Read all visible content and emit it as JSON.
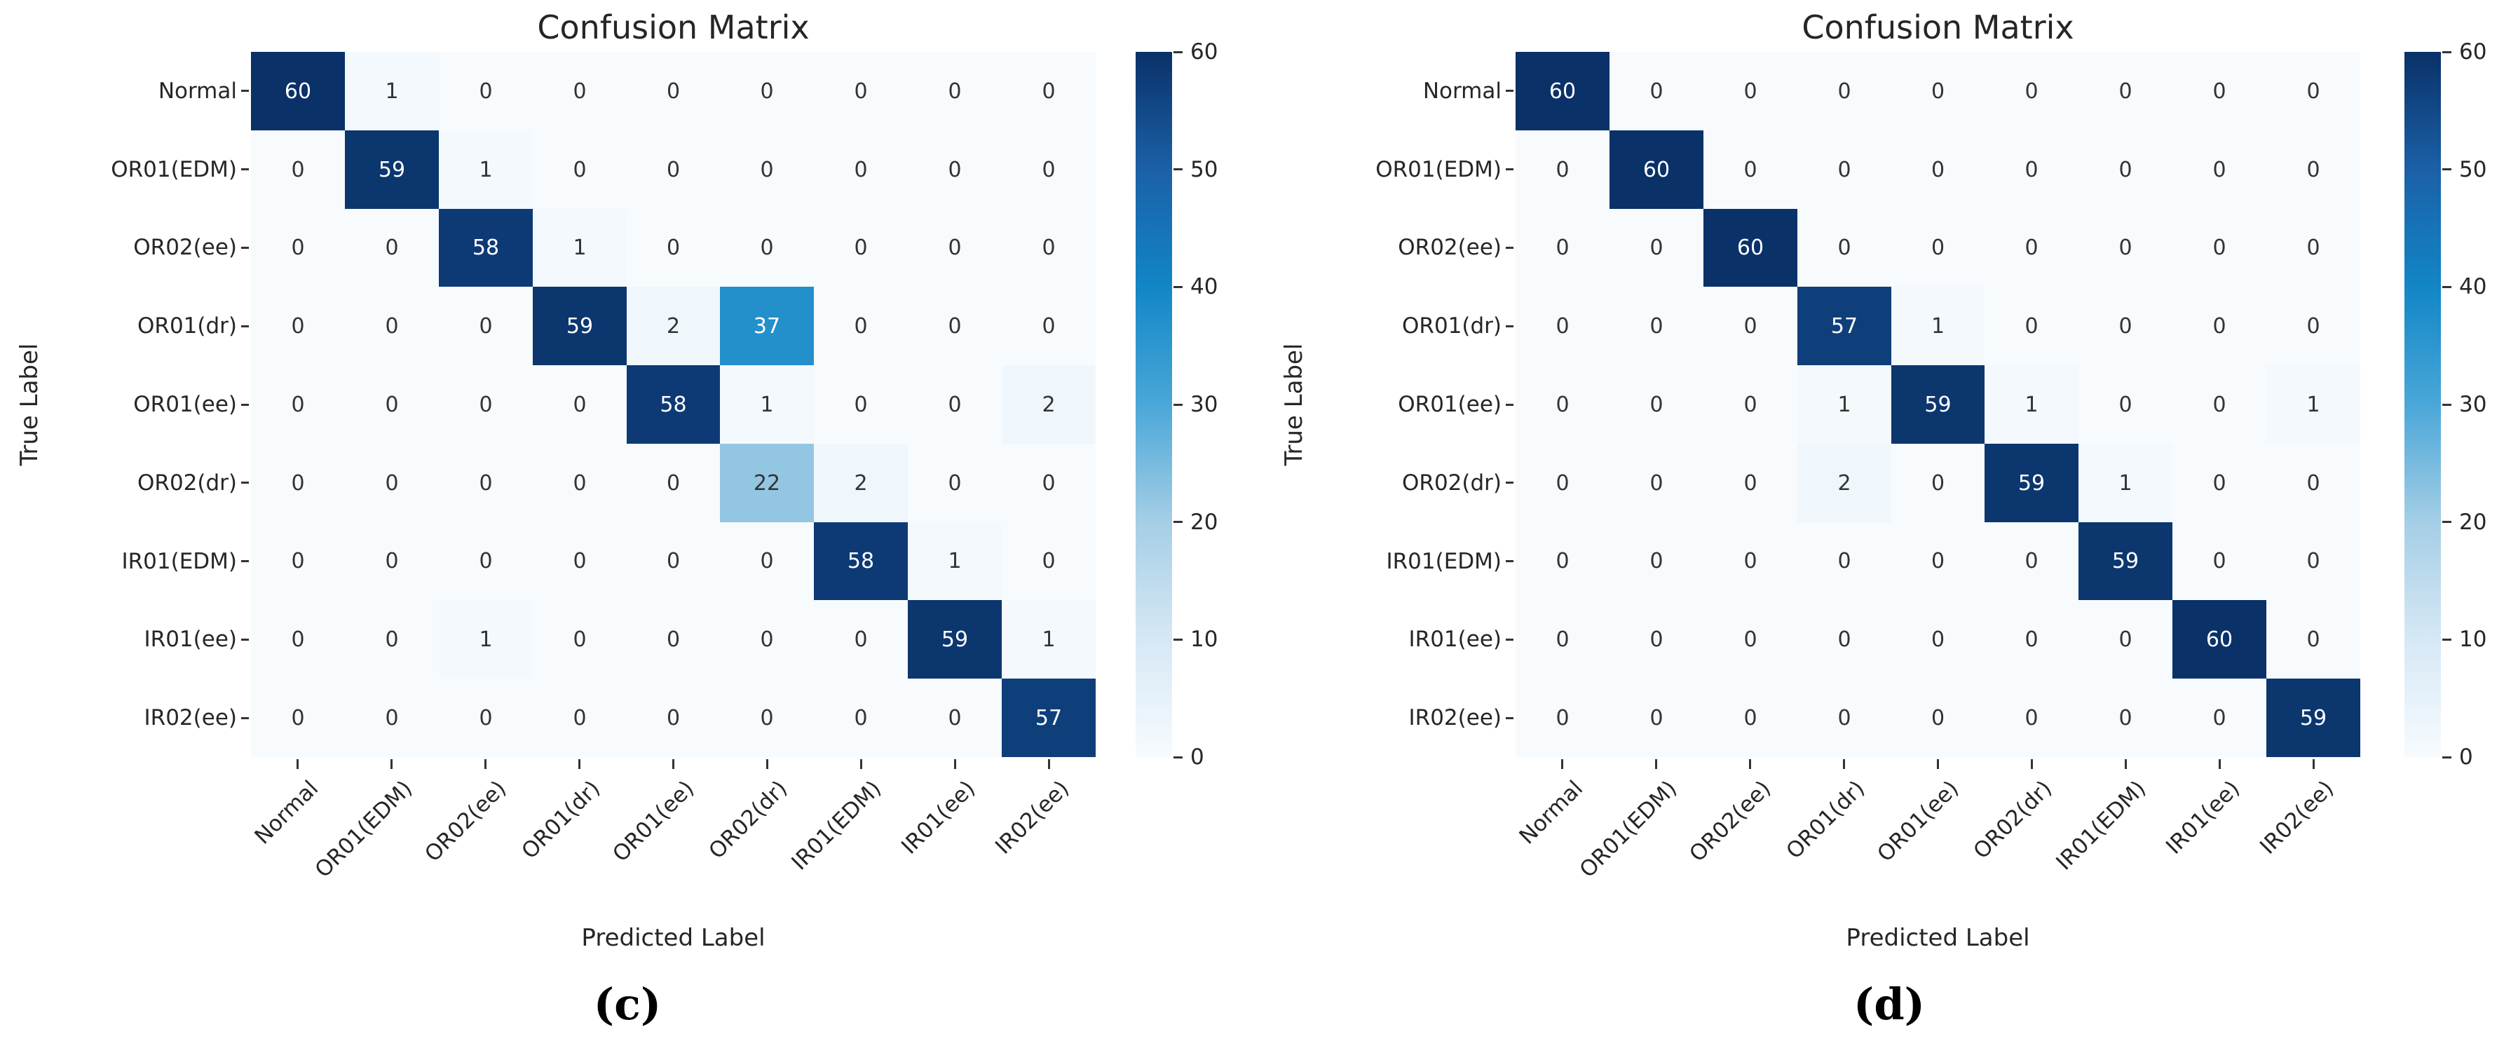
{
  "figure": {
    "background": "#ffffff"
  },
  "chart_data": [
    {
      "type": "heatmap",
      "panel_caption": "(c)",
      "title": "Confusion Matrix",
      "xlabel": "Predicted Label",
      "ylabel": "True Label",
      "categories": [
        "Normal",
        "OR01(EDM)",
        "OR02(ee)",
        "OR01(dr)",
        "OR01(ee)",
        "OR02(dr)",
        "IR01(EDM)",
        "IR01(ee)",
        "IR02(ee)"
      ],
      "matrix": [
        [
          60,
          1,
          0,
          0,
          0,
          0,
          0,
          0,
          0
        ],
        [
          0,
          59,
          1,
          0,
          0,
          0,
          0,
          0,
          0
        ],
        [
          0,
          0,
          58,
          1,
          0,
          0,
          0,
          0,
          0
        ],
        [
          0,
          0,
          0,
          59,
          2,
          37,
          0,
          0,
          0
        ],
        [
          0,
          0,
          0,
          0,
          58,
          1,
          0,
          0,
          2
        ],
        [
          0,
          0,
          0,
          0,
          0,
          22,
          2,
          0,
          0
        ],
        [
          0,
          0,
          0,
          0,
          0,
          0,
          58,
          1,
          0
        ],
        [
          0,
          0,
          1,
          0,
          0,
          0,
          0,
          59,
          1
        ],
        [
          0,
          0,
          0,
          0,
          0,
          0,
          0,
          0,
          57
        ]
      ],
      "vmin": 0,
      "vmax": 60,
      "colorbar_ticks": [
        0,
        10,
        20,
        30,
        40,
        50,
        60
      ],
      "colormap": "Blues",
      "legend_position": "right-colorbar",
      "grid": false
    },
    {
      "type": "heatmap",
      "panel_caption": "(d)",
      "title": "Confusion Matrix",
      "xlabel": "Predicted Label",
      "ylabel": "True Label",
      "categories": [
        "Normal",
        "OR01(EDM)",
        "OR02(ee)",
        "OR01(dr)",
        "OR01(ee)",
        "OR02(dr)",
        "IR01(EDM)",
        "IR01(ee)",
        "IR02(ee)"
      ],
      "matrix": [
        [
          60,
          0,
          0,
          0,
          0,
          0,
          0,
          0,
          0
        ],
        [
          0,
          60,
          0,
          0,
          0,
          0,
          0,
          0,
          0
        ],
        [
          0,
          0,
          60,
          0,
          0,
          0,
          0,
          0,
          0
        ],
        [
          0,
          0,
          0,
          57,
          1,
          0,
          0,
          0,
          0
        ],
        [
          0,
          0,
          0,
          1,
          59,
          1,
          0,
          0,
          1
        ],
        [
          0,
          0,
          0,
          2,
          0,
          59,
          1,
          0,
          0
        ],
        [
          0,
          0,
          0,
          0,
          0,
          0,
          59,
          0,
          0
        ],
        [
          0,
          0,
          0,
          0,
          0,
          0,
          0,
          60,
          0
        ],
        [
          0,
          0,
          0,
          0,
          0,
          0,
          0,
          0,
          59
        ]
      ],
      "vmin": 0,
      "vmax": 60,
      "colorbar_ticks": [
        0,
        10,
        20,
        30,
        40,
        50,
        60
      ],
      "colormap": "Blues",
      "legend_position": "right-colorbar",
      "grid": false
    }
  ],
  "colors": {
    "cmap_stops": [
      {
        "t": 0.0,
        "color": "#f7fbfe"
      },
      {
        "t": 0.1667,
        "color": "#d6e8f5"
      },
      {
        "t": 0.3333,
        "color": "#a5cee6"
      },
      {
        "t": 0.5,
        "color": "#4aa7d8"
      },
      {
        "t": 0.6667,
        "color": "#1286c6"
      },
      {
        "t": 0.8333,
        "color": "#1b60a7"
      },
      {
        "t": 1.0,
        "color": "#0a3168"
      }
    ],
    "annotation_dark_text": "#333333",
    "annotation_light_text": "#ffffff",
    "tick_color": "#262626"
  }
}
